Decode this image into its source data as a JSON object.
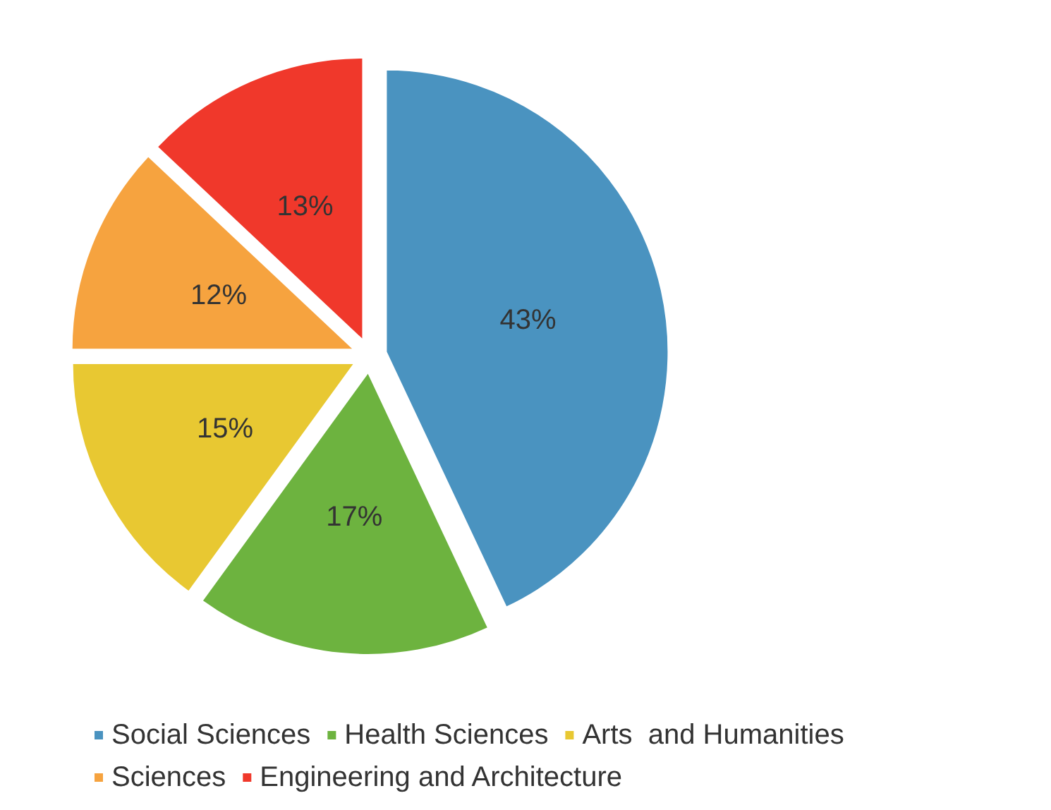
{
  "chart_data": {
    "type": "pie",
    "categories": [
      "Social Sciences",
      "Health Sciences",
      "Arts  and Humanities",
      "Sciences",
      "Engineering and Architecture"
    ],
    "values": [
      43,
      17,
      15,
      12,
      13
    ],
    "value_labels": [
      "43%",
      "17%",
      "15%",
      "12%",
      "13%"
    ],
    "colors": [
      "#4a93c0",
      "#6db33f",
      "#e8c832",
      "#f6a33f",
      "#f0382b"
    ],
    "legend": "bottom"
  }
}
